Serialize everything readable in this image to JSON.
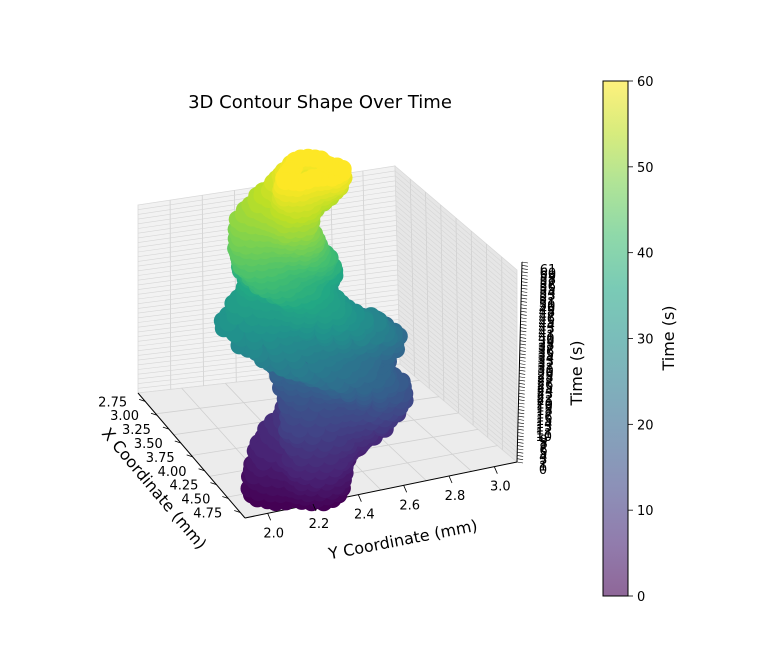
{
  "chart_data": {
    "type": "scatter",
    "title": "3D Contour Shape Over Time",
    "xlabel": "X Coordinate (mm)",
    "ylabel": "Y Coordinate (mm)",
    "zlabel": "Time (s)",
    "x_ticks": [
      "2.75",
      "3.00",
      "3.25",
      "3.50",
      "3.75",
      "4.00",
      "4.25",
      "4.50",
      "4.75"
    ],
    "y_ticks": [
      "2.0",
      "2.2",
      "2.4",
      "2.6",
      "2.8",
      "3.0"
    ],
    "z_range": [
      0,
      61
    ],
    "xlim": [
      2.6,
      4.85
    ],
    "ylim": [
      1.9,
      3.1
    ],
    "colorbar": {
      "label": "Time (s)",
      "ticks": [
        "0",
        "10",
        "20",
        "30",
        "40",
        "50",
        "60"
      ],
      "range": [
        0,
        60
      ],
      "colormap": "viridis",
      "alpha": 0.6
    },
    "series": [
      {
        "description_points": [
          {
            "t": 0,
            "x": 4.55,
            "y": 2.2,
            "spread": 0.18
          },
          {
            "t": 5,
            "x": 4.35,
            "y": 2.3,
            "spread": 0.22
          },
          {
            "t": 10,
            "x": 4.1,
            "y": 2.45,
            "spread": 0.24
          },
          {
            "t": 15,
            "x": 3.9,
            "y": 2.55,
            "spread": 0.24
          },
          {
            "t": 20,
            "x": 3.75,
            "y": 2.55,
            "spread": 0.26
          },
          {
            "t": 25,
            "x": 3.6,
            "y": 2.45,
            "spread": 0.28
          },
          {
            "t": 30,
            "x": 3.4,
            "y": 2.4,
            "spread": 0.26
          },
          {
            "t": 35,
            "x": 3.3,
            "y": 2.45,
            "spread": 0.18
          },
          {
            "t": 40,
            "x": 3.2,
            "y": 2.4,
            "spread": 0.18
          },
          {
            "t": 45,
            "x": 3.1,
            "y": 2.4,
            "spread": 0.16
          },
          {
            "t": 50,
            "x": 3.0,
            "y": 2.45,
            "spread": 0.16
          },
          {
            "t": 55,
            "x": 2.95,
            "y": 2.55,
            "spread": 0.14
          },
          {
            "t": 60,
            "x": 2.9,
            "y": 2.6,
            "spread": 0.12
          }
        ]
      }
    ]
  }
}
